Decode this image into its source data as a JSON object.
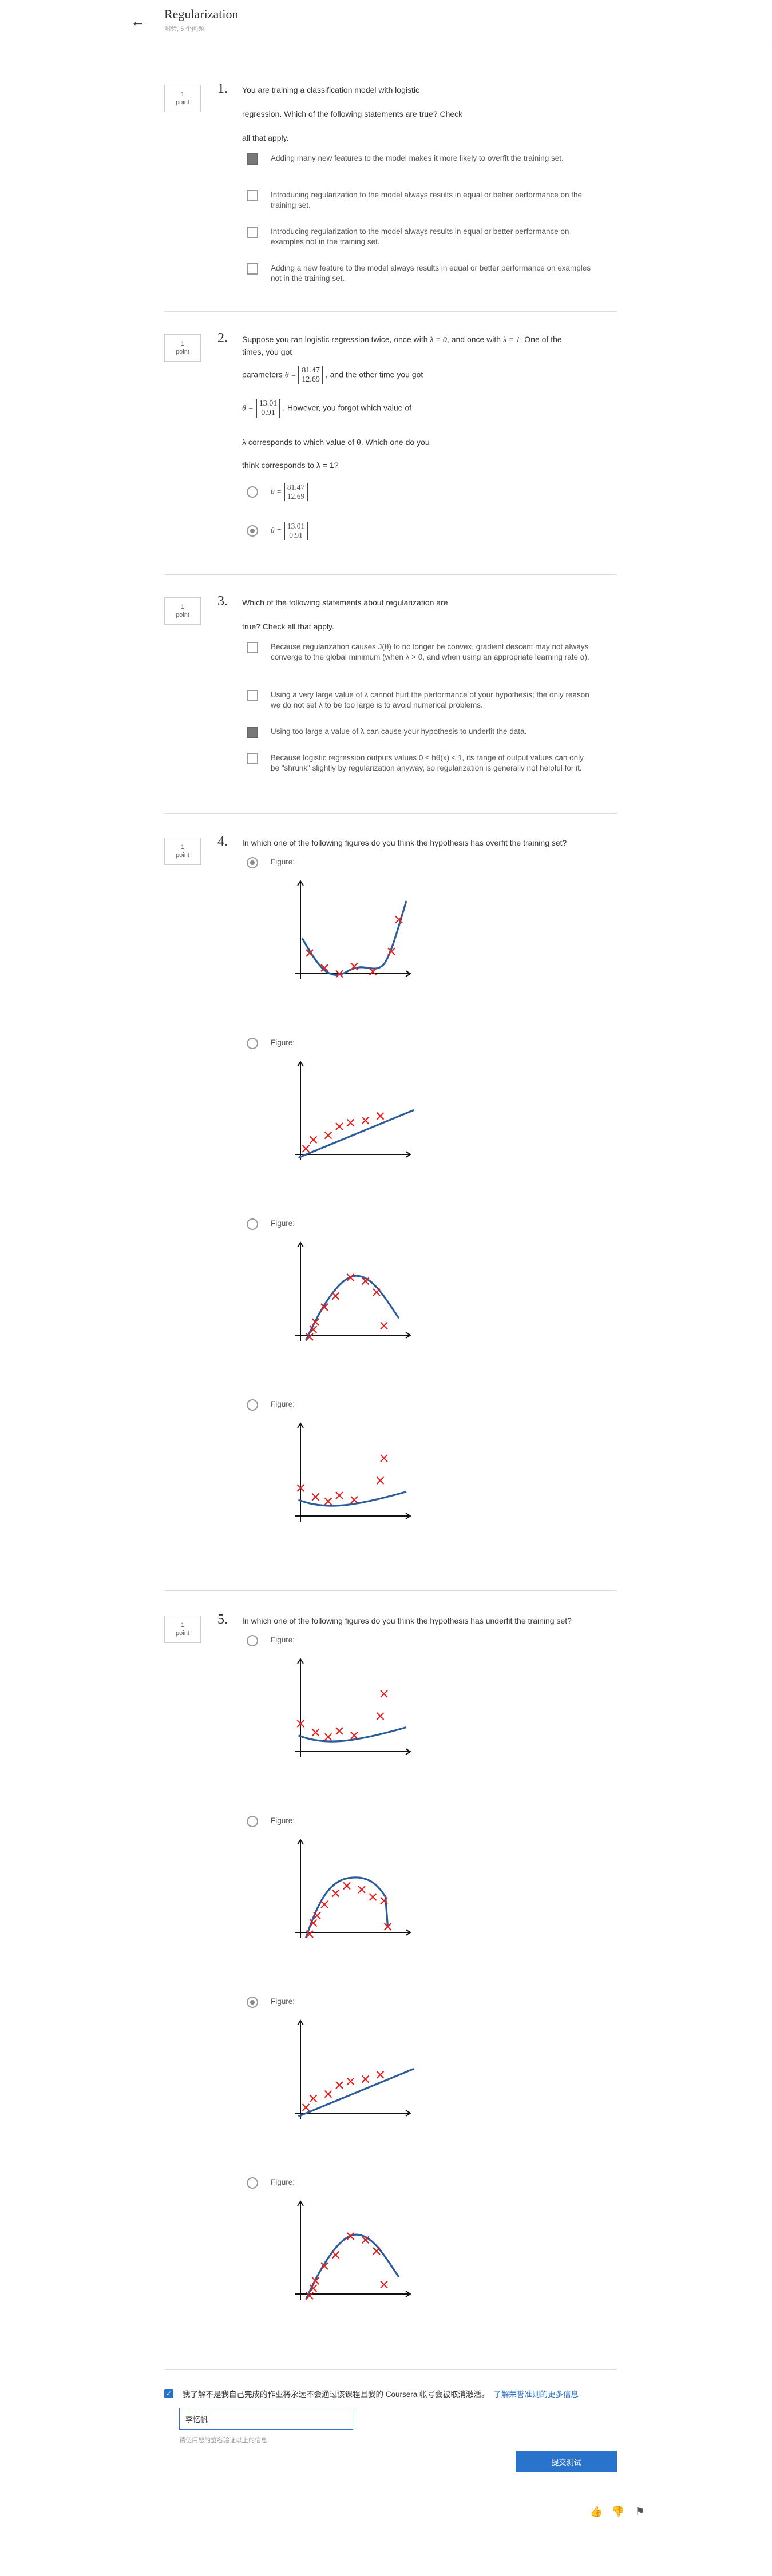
{
  "header": {
    "back_icon": "arrow-left-icon",
    "title": "Regularization",
    "subtitle": "测验, 5 个问题"
  },
  "questions": [
    {
      "number": "1.",
      "points": "1",
      "points_label": "point",
      "text": [
        "You are training a classification model with logistic",
        "regression. Which of the following statements are true? Check",
        "all that apply."
      ],
      "options": [
        {
          "text": "Adding many new features to the model makes it more likely to overfit the training set.",
          "checked": true
        },
        {
          "text": "Introducing regularization to the model always results in equal or better performance on the training set.",
          "checked": false
        },
        {
          "text": "Introducing regularization to the model always results in equal or better performance on examples not in the training set.",
          "checked": false
        },
        {
          "text": "Adding a new feature to the model always results in equal or better performance on examples not in the training set.",
          "checked": false
        }
      ]
    },
    {
      "number": "2.",
      "points": "1",
      "points_label": "point",
      "text_line1a": "Suppose you ran logistic regression twice, once with ",
      "text_line1b": ", and once with ",
      "text_line1c": ". One of the",
      "text_line2": "times, you got",
      "lambda0": "λ = 0",
      "lambda1": "λ = 1",
      "text_params": "parameters",
      "text_other": ", and the other time you got",
      "theta": "θ =",
      "matrix_a": [
        "81.47",
        "12.69"
      ],
      "matrix_b": [
        "13.01",
        "0.91"
      ],
      "text_forgot": ". However, you forgot which value of",
      "text_line5": "λ corresponds to which value of θ. Which one do you",
      "text_line6": "think corresponds to λ = 1?",
      "options": [
        {
          "checked": false
        },
        {
          "checked": true
        }
      ]
    },
    {
      "number": "3.",
      "points": "1",
      "points_label": "point",
      "text": [
        "Which of the following statements about regularization are",
        "true? Check all that apply."
      ],
      "options": [
        {
          "text": "Because regularization causes J(θ) to no longer be convex, gradient descent may not always converge to the global minimum (when λ > 0, and when using an appropriate learning rate α).",
          "checked": false
        },
        {
          "text": "Using a very large value of λ cannot hurt the performance of your hypothesis; the only reason we do not set λ to be too large is to avoid numerical problems.",
          "checked": false
        },
        {
          "text": "Using too large a value of λ can cause your hypothesis to underfit the data.",
          "checked": true
        },
        {
          "text": "Because logistic regression outputs values 0 ≤ hθ(x) ≤ 1, its range of output values can only be \"shrunk\" slightly by regularization anyway, so regularization is generally not helpful for it.",
          "checked": false
        }
      ]
    },
    {
      "number": "4.",
      "points": "1",
      "points_label": "point",
      "text": "In which one of the following figures do you think the hypothesis has overfit the training set?",
      "figure_label": "Figure:",
      "selected": 0
    },
    {
      "number": "5.",
      "points": "1",
      "points_label": "point",
      "text": "In which one of the following figures do you think the hypothesis has underfit the training set?",
      "figure_label": "Figure:",
      "selected": 2
    }
  ],
  "honor": {
    "checked": true,
    "text": "我了解不是我自己完成的作业将永远不会通过该课程且我的 Coursera 帐号会被取消激活。",
    "link": "了解荣誉准则的更多信息",
    "name_value": "李忆帆",
    "hint": "请使用您的签名验证以上的信息"
  },
  "submit_label": "提交测试",
  "footer": {
    "icons": [
      "thumbs-up-icon",
      "thumbs-down-icon",
      "flag-icon"
    ]
  },
  "colors": {
    "accent": "#2a73cc",
    "curve": "#2b5d9b",
    "marker": "#e02020"
  }
}
